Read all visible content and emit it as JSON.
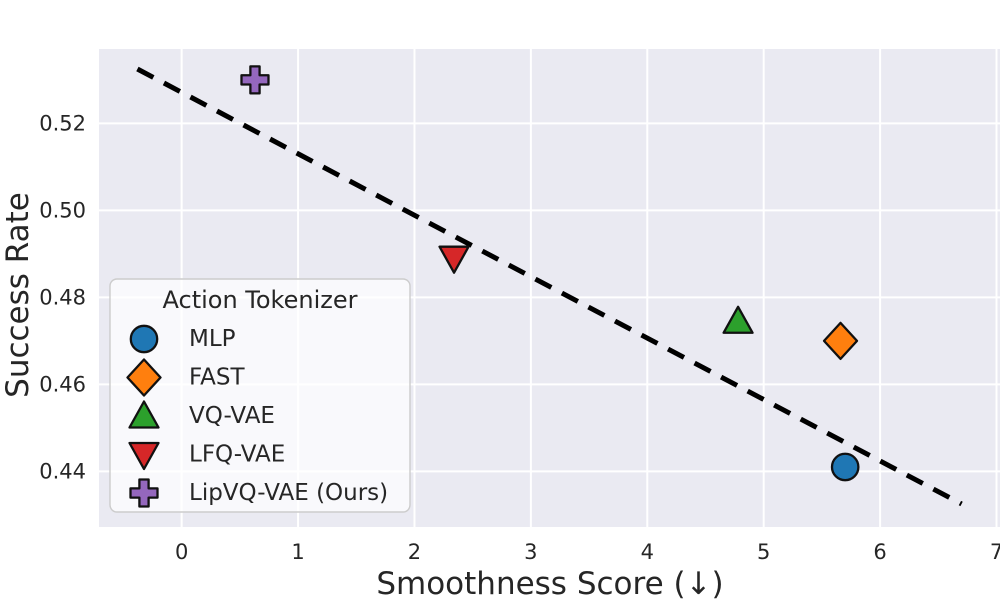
{
  "figure": {
    "background": "#ffffff"
  },
  "chart_data": {
    "type": "scatter",
    "title": "",
    "xlabel": "Smoothness Score (↓)",
    "ylabel": "Success Rate",
    "xlim": [
      -0.71,
      7.03
    ],
    "ylim": [
      0.4272,
      0.5371
    ],
    "xticks": [
      0,
      1,
      2,
      3,
      4,
      5,
      6,
      7
    ],
    "xtick_labels": [
      "0",
      "1",
      "2",
      "3",
      "4",
      "5",
      "6",
      "7"
    ],
    "yticks": [
      0.44,
      0.46,
      0.48,
      0.5,
      0.52
    ],
    "ytick_labels": [
      "0.44",
      "0.46",
      "0.48",
      "0.50",
      "0.52"
    ],
    "grid": true,
    "plot_bg": "#eaeaf2",
    "grid_color": "#ffffff",
    "text_color": "#262626",
    "marker_edge_color": "#111111",
    "legend": {
      "title": "Action Tokenizer",
      "position": "lower left"
    },
    "series": [
      {
        "name": "MLP",
        "marker": "circle",
        "color": "#1f77b4",
        "x": 5.7,
        "y": 0.441
      },
      {
        "name": "FAST",
        "marker": "diamond",
        "color": "#ff7f0e",
        "x": 5.66,
        "y": 0.47
      },
      {
        "name": "VQ-VAE",
        "marker": "triangle-up",
        "color": "#2ca02c",
        "x": 4.78,
        "y": 0.4745
      },
      {
        "name": "LFQ-VAE",
        "marker": "triangle-down",
        "color": "#d62728",
        "x": 2.34,
        "y": 0.489
      },
      {
        "name": "LipVQ-VAE (Ours)",
        "marker": "plus",
        "color": "#9467bd",
        "x": 0.63,
        "y": 0.53
      }
    ],
    "trendline": {
      "style": "dashed",
      "color": "#000000",
      "x1": -0.38,
      "y1": 0.5325,
      "x2": 6.7,
      "y2": 0.4325
    }
  }
}
